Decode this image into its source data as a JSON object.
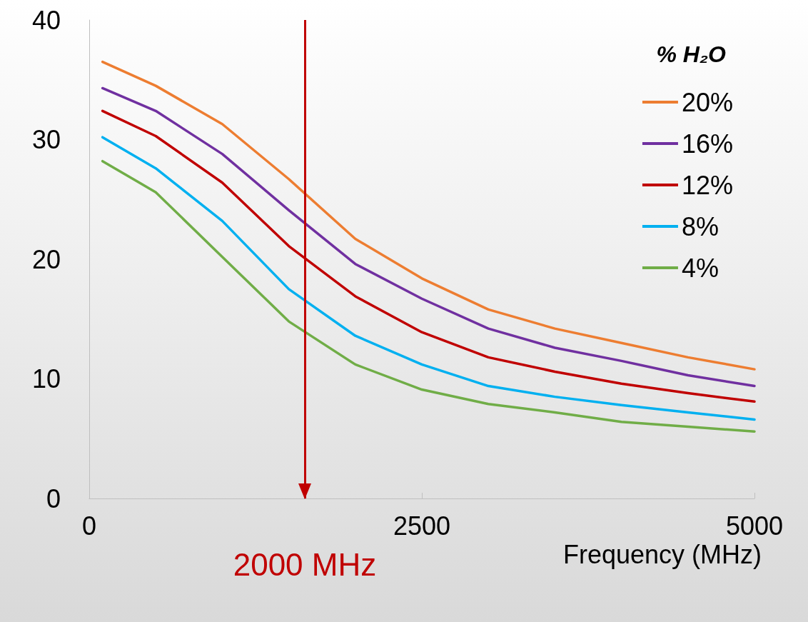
{
  "chart_data": {
    "type": "line",
    "xlabel": "Frequency (MHz)",
    "legend_title": "% H₂O",
    "x": [
      100,
      500,
      1000,
      1500,
      2000,
      2500,
      3000,
      3500,
      4000,
      4500,
      5000
    ],
    "series": [
      {
        "name": "20%",
        "color": "#ed7d31",
        "values": [
          36.5,
          34.5,
          31.3,
          26.7,
          21.7,
          18.4,
          15.8,
          14.2,
          13.0,
          11.8,
          10.8
        ]
      },
      {
        "name": "16%",
        "color": "#7030a0",
        "values": [
          34.3,
          32.4,
          28.8,
          24.1,
          19.6,
          16.7,
          14.2,
          12.6,
          11.5,
          10.3,
          9.4
        ]
      },
      {
        "name": "12%",
        "color": "#c00000",
        "values": [
          32.4,
          30.3,
          26.4,
          21.1,
          16.9,
          13.9,
          11.8,
          10.6,
          9.6,
          8.8,
          8.1
        ]
      },
      {
        "name": "8%",
        "color": "#00b0f0",
        "values": [
          30.2,
          27.6,
          23.2,
          17.5,
          13.6,
          11.2,
          9.4,
          8.5,
          7.8,
          7.2,
          6.6
        ]
      },
      {
        "name": "4%",
        "color": "#70ad47",
        "values": [
          28.2,
          25.6,
          20.2,
          14.8,
          11.2,
          9.1,
          7.9,
          7.2,
          6.4,
          6.0,
          5.6
        ]
      }
    ],
    "xlim": [
      0,
      5000
    ],
    "xticks": [
      0,
      2500,
      5000
    ],
    "ylim": [
      0,
      40
    ],
    "yticks": [
      0,
      10,
      20,
      30,
      40
    ],
    "ref_lines": [
      {
        "axis": "x",
        "value": 1620,
        "label": "2000 MHz",
        "color": "#c00000"
      }
    ],
    "grid": false,
    "legend": "top right",
    "marker": "none",
    "line_style": "solid"
  }
}
